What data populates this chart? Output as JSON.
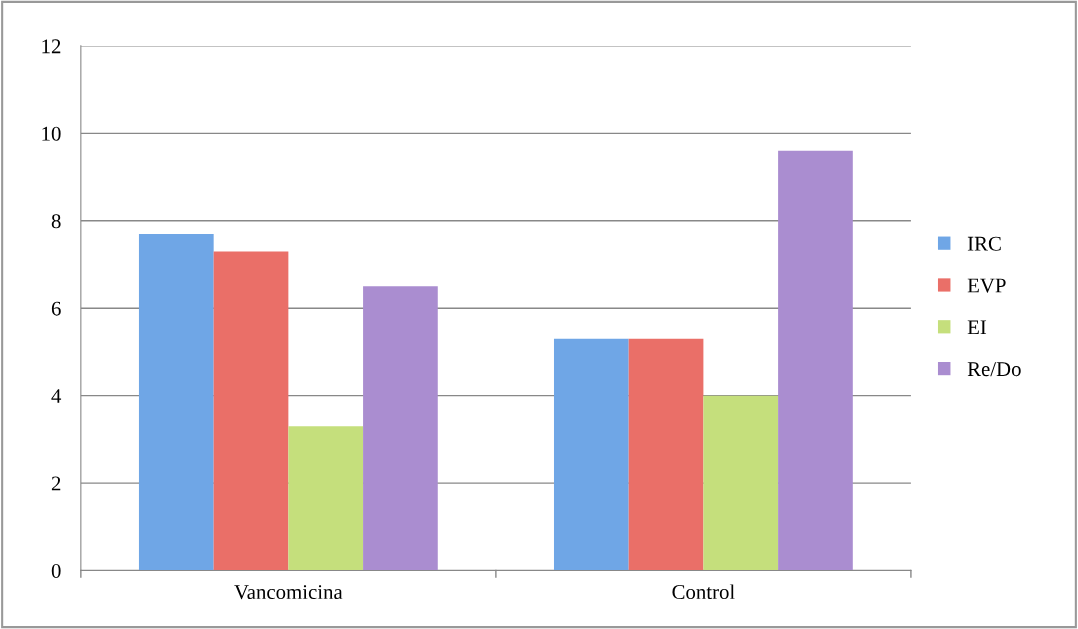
{
  "chart_data": {
    "type": "bar",
    "categories": [
      "Vancomicina",
      "Control"
    ],
    "series": [
      {
        "name": "IRC",
        "color": "#6fa6e6",
        "values": [
          7.7,
          5.3
        ]
      },
      {
        "name": "EVP",
        "color": "#ea6f68",
        "values": [
          7.3,
          5.3
        ]
      },
      {
        "name": "EI",
        "color": "#c5df7c",
        "values": [
          3.3,
          4.0
        ]
      },
      {
        "name": "Re/Do",
        "color": "#aa8dd0",
        "values": [
          6.5,
          9.6
        ]
      }
    ],
    "ylim": [
      0,
      12
    ],
    "yticks": [
      0,
      2,
      4,
      6,
      8,
      10,
      12
    ],
    "grid": "y",
    "legend": "right"
  }
}
